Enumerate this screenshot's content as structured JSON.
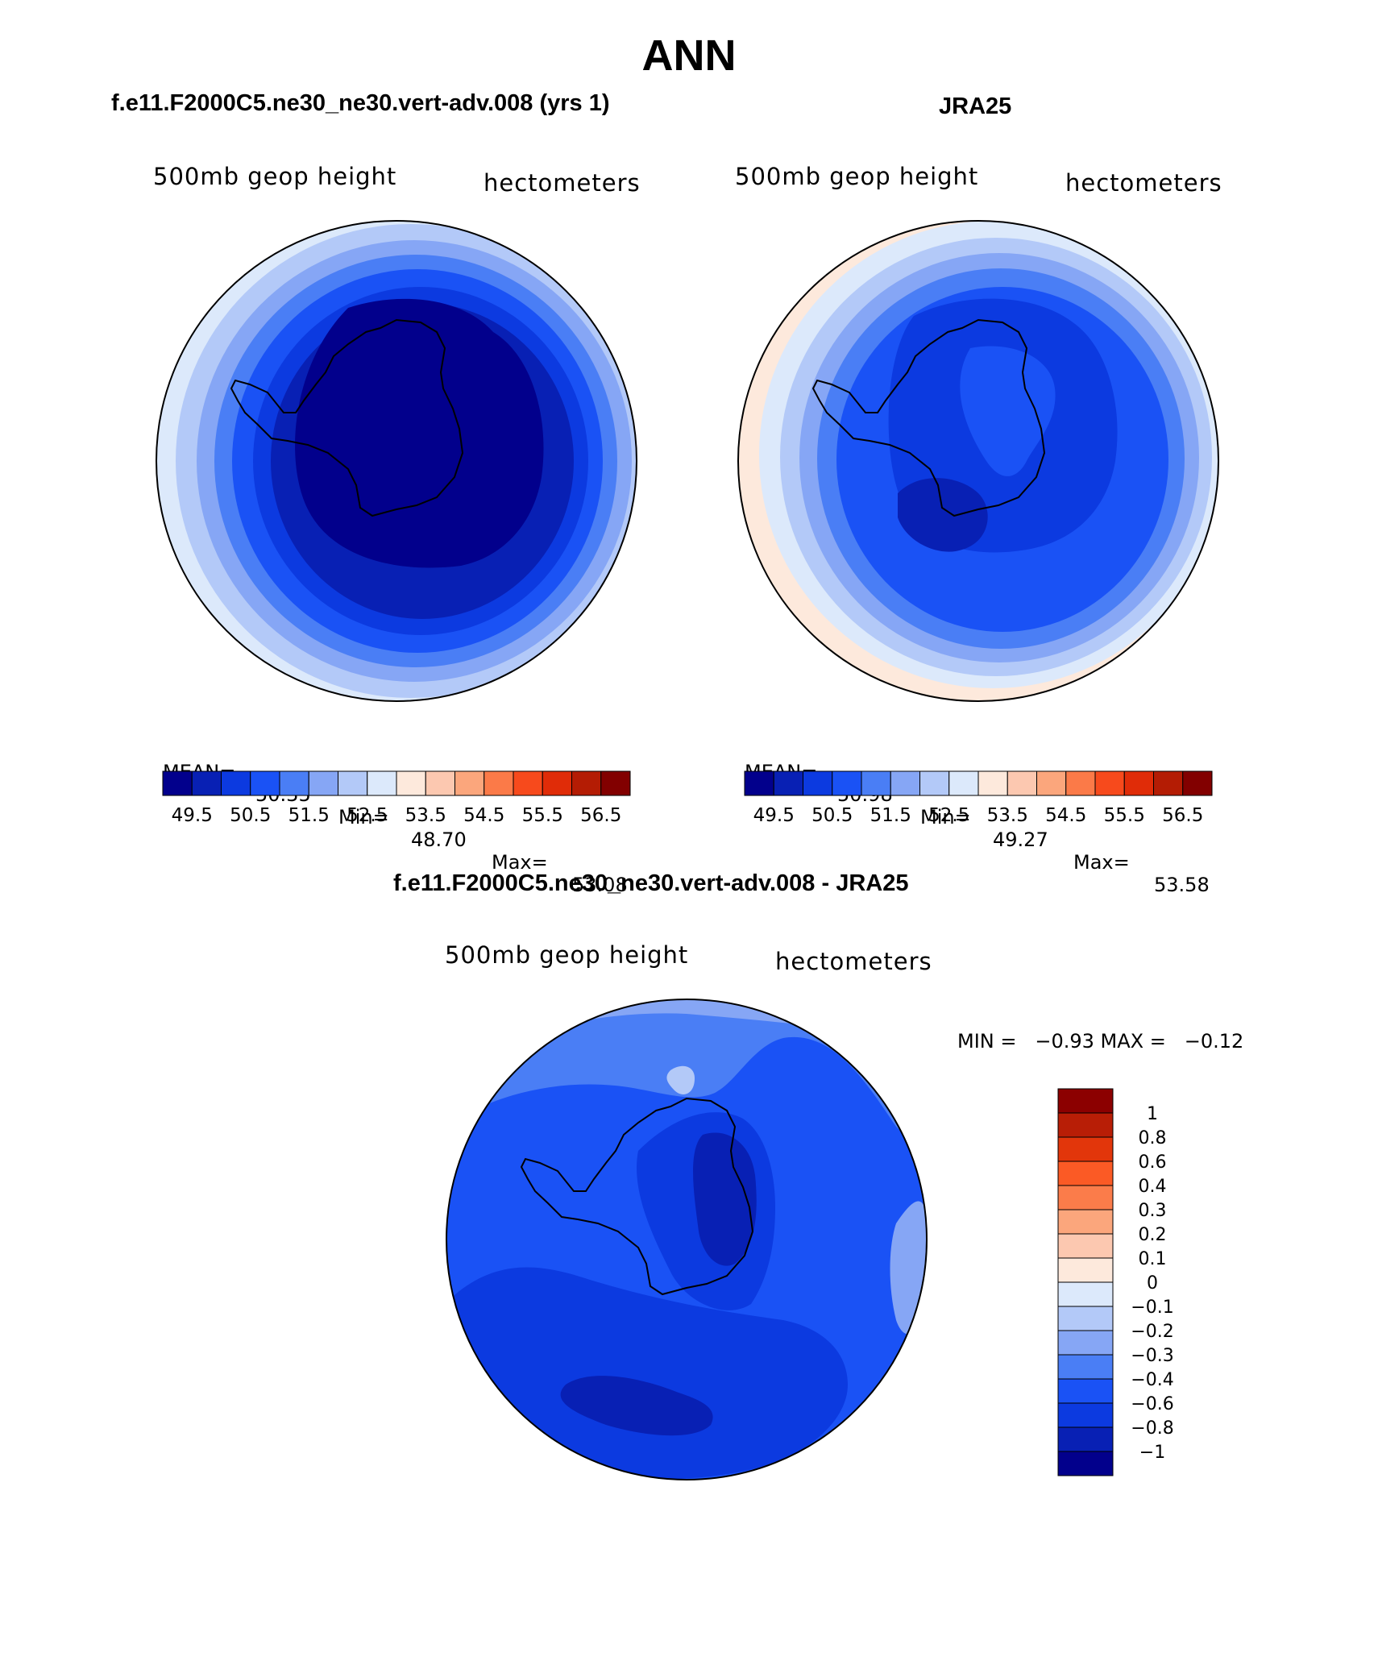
{
  "title": "ANN",
  "panels": [
    {
      "title": "f.e11.F2000C5.ne30_ne30.vert-adv.008 (yrs 1)",
      "left_label": "500mb geop height",
      "right_label": "hectometers",
      "stats": {
        "mean_label": "MEAN=",
        "mean": "50.35",
        "min_label": "Min=",
        "min": "48.70",
        "max_label": "Max=",
        "max": "53.08"
      }
    },
    {
      "title": "JRA25",
      "left_label": "500mb geop height",
      "right_label": "hectometers",
      "stats": {
        "mean_label": "MEAN=",
        "mean": "50.98",
        "min_label": "Min=",
        "min": "49.27",
        "max_label": "Max=",
        "max": "53.58"
      }
    }
  ],
  "diff_panel": {
    "title": "f.e11.F2000C5.ne30_ne30.vert-adv.008 - JRA25",
    "left_label": "500mb geop height",
    "right_label": "hectometers",
    "minmax": "MIN =   −0.93 MAX =   −0.12"
  },
  "colorbar_top": {
    "colors": [
      "#02008c",
      "#0820b4",
      "#0c3ae0",
      "#1a52f5",
      "#4a7ef5",
      "#86a6f5",
      "#b3c9f8",
      "#dce9fb",
      "#fde9dc",
      "#fcc8b0",
      "#fba67c",
      "#fb7a48",
      "#f74a1c",
      "#e02c08",
      "#b41c04",
      "#820000"
    ],
    "labels": [
      "49.5",
      "50.5",
      "51.5",
      "52.5",
      "53.5",
      "54.5",
      "55.5",
      "56.5"
    ]
  },
  "colorbar_diff": {
    "colors": [
      "#8c0000",
      "#b81e06",
      "#e2360b",
      "#fb5a25",
      "#fb7c4a",
      "#fba67c",
      "#fcc8b0",
      "#fde9dc",
      "#dce9fb",
      "#b3c9f8",
      "#86a6f5",
      "#4a7ef5",
      "#1a52f5",
      "#0c3ae0",
      "#0820b4",
      "#02008c"
    ],
    "labels": [
      "1",
      "0.8",
      "0.6",
      "0.4",
      "0.3",
      "0.2",
      "0.1",
      "0",
      "−0.1",
      "−0.2",
      "−0.3",
      "−0.4",
      "−0.6",
      "−0.8",
      "−1"
    ]
  }
}
